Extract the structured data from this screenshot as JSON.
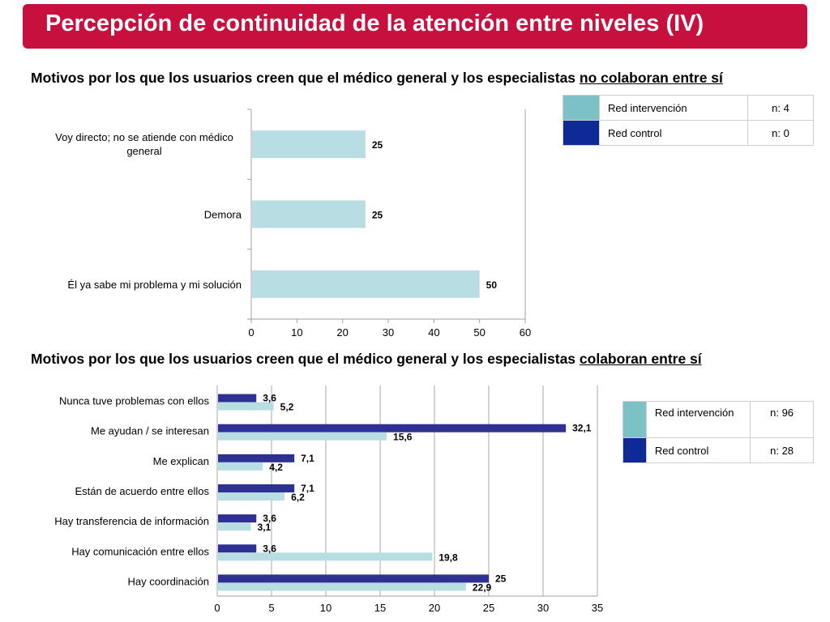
{
  "title": "Percepción de continuidad de la atención entre niveles  (IV)",
  "colors": {
    "banner": "#c8103e",
    "intervencion": "#b8dee3",
    "control": "#2e3192",
    "legend_intervencion": "#7cc1c6",
    "legend_control": "#0d2a96"
  },
  "section1": {
    "subtitle_prefix": "Motivos por los que los usuarios creen que el médico general y los especialistas ",
    "subtitle_emph": "no colaboran entre sí",
    "legend": [
      {
        "label": "Red intervención",
        "n": "n: 4"
      },
      {
        "label": "Red control",
        "n": "n: 0"
      }
    ]
  },
  "section2": {
    "subtitle_prefix": "Motivos por los que los usuarios creen que el médico general y los especialistas ",
    "subtitle_emph": "colaboran entre sí",
    "legend": [
      {
        "label": "Red intervención",
        "n": "n: 96"
      },
      {
        "label": "Red control",
        "n": "n: 28"
      }
    ]
  },
  "chart_data": [
    {
      "type": "bar",
      "orientation": "horizontal",
      "categories": [
        "Voy directo; no se atiende con médico general",
        "Demora",
        "Él ya sabe mi problema y mi solución"
      ],
      "series": [
        {
          "name": "Red intervención",
          "values": [
            25,
            25,
            50
          ],
          "labels": [
            "25",
            "25",
            "50"
          ]
        }
      ],
      "xlim": [
        0,
        60
      ],
      "xticks": [
        "0",
        "10",
        "20",
        "30",
        "40",
        "50",
        "60"
      ]
    },
    {
      "type": "bar",
      "orientation": "horizontal",
      "categories": [
        "Nunca tuve problemas con ellos",
        "Me ayudan / se interesan",
        "Me explican",
        "Están de acuerdo entre ellos",
        "Hay transferencia de información",
        "Hay comunicación entre ellos",
        "Hay coordinación"
      ],
      "series": [
        {
          "name": "Red control",
          "values": [
            3.6,
            32.1,
            7.1,
            7.1,
            3.6,
            3.6,
            25
          ],
          "labels": [
            "3,6",
            "32,1",
            "7,1",
            "7,1",
            "3,6",
            "3,6",
            "25"
          ]
        },
        {
          "name": "Red intervención",
          "values": [
            5.2,
            15.6,
            4.2,
            6.2,
            3.1,
            19.8,
            22.9
          ],
          "labels": [
            "5,2",
            "15,6",
            "4,2",
            "6,2",
            "3,1",
            "19,8",
            "22,9"
          ]
        }
      ],
      "xlim": [
        0,
        35
      ],
      "xticks": [
        "0",
        "5",
        "10",
        "15",
        "20",
        "25",
        "30",
        "35"
      ],
      "grid": true
    }
  ]
}
